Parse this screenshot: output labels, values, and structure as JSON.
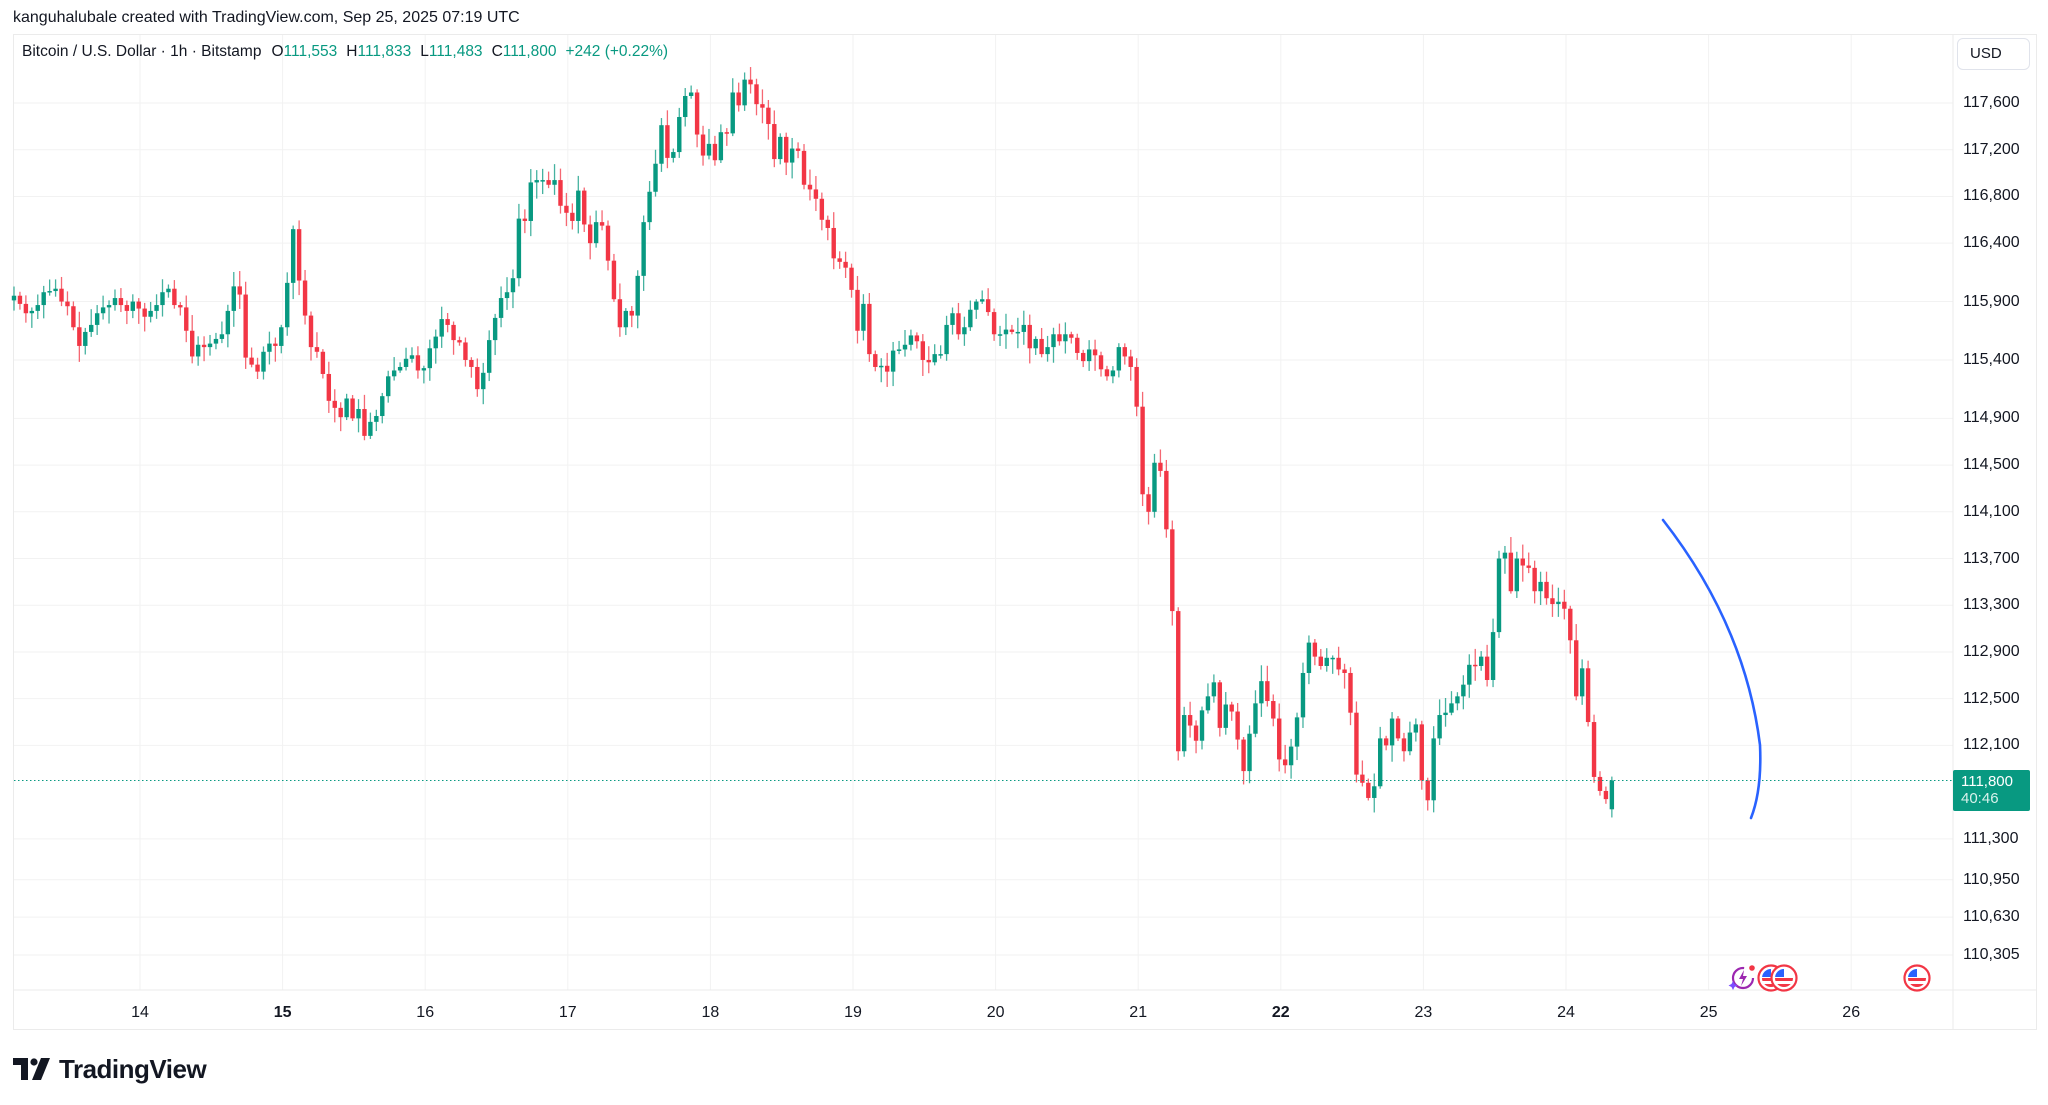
{
  "credit": "kanguhalubale created with TradingView.com, Sep 25, 2025 07:19 UTC",
  "legend": {
    "symbol": "Bitcoin / U.S. Dollar · 1h · Bitstamp",
    "open_label": "O",
    "open": "111,553",
    "high_label": "H",
    "high": "111,833",
    "low_label": "L",
    "low": "111,483",
    "close_label": "C",
    "close": "111,800",
    "change": "+242 (+0.22%)"
  },
  "currency_button": "USD",
  "price_axis": {
    "labels": [
      "117,600",
      "117,200",
      "116,800",
      "116,400",
      "115,900",
      "115,400",
      "114,900",
      "114,500",
      "114,100",
      "113,700",
      "113,300",
      "112,900",
      "112,500",
      "112,100",
      "111,300",
      "110,950",
      "110,630",
      "110,305"
    ],
    "current_price": "111,800",
    "countdown": "40:46"
  },
  "time_axis": {
    "labels": [
      {
        "text": "14",
        "bold": false
      },
      {
        "text": "15",
        "bold": true
      },
      {
        "text": "16",
        "bold": false
      },
      {
        "text": "17",
        "bold": false
      },
      {
        "text": "18",
        "bold": false
      },
      {
        "text": "19",
        "bold": false
      },
      {
        "text": "20",
        "bold": false
      },
      {
        "text": "21",
        "bold": false
      },
      {
        "text": "22",
        "bold": true
      },
      {
        "text": "23",
        "bold": false
      },
      {
        "text": "24",
        "bold": false
      },
      {
        "text": "25",
        "bold": false
      },
      {
        "text": "26",
        "bold": false
      }
    ]
  },
  "events": [
    "ai-insight-icon",
    "us-flag-event-icon",
    "us-flag-event-icon",
    "us-flag-event-icon"
  ],
  "logo_text": "TradingView",
  "colors": {
    "up": "#089981",
    "down": "#F23645",
    "drawing": "#2962FF",
    "grid": "#f2f2f2"
  },
  "chart_data": {
    "type": "candlestick",
    "title": "Bitcoin / U.S. Dollar · 1h · Bitstamp",
    "xlabel": "",
    "ylabel": "USD",
    "ylim": [
      110100,
      117950
    ],
    "grid": true,
    "x_ticks": [
      "14",
      "15",
      "16",
      "17",
      "18",
      "19",
      "20",
      "21",
      "22",
      "23",
      "24",
      "25",
      "26"
    ],
    "y_ticks": [
      117600,
      117200,
      116800,
      116400,
      115900,
      115400,
      114900,
      114500,
      114100,
      113700,
      113300,
      112900,
      112500,
      112100,
      111300,
      110950,
      110630,
      110305
    ],
    "last": {
      "open": 111553,
      "high": 111833,
      "low": 111483,
      "close": 111800,
      "change": 242,
      "change_pct": 0.22
    },
    "annotation": "blue curved arc drawn from ~113,950 on Sep 24 down to ~111,450 on Sep 25",
    "hourly_close": [
      115950,
      115880,
      115800,
      115820,
      115870,
      115980,
      115990,
      116010,
      115900,
      115860,
      115680,
      115520,
      115640,
      115700,
      115800,
      115850,
      115870,
      115930,
      115870,
      115820,
      115900,
      115840,
      115770,
      115820,
      115870,
      115980,
      116010,
      115870,
      115850,
      115650,
      115430,
      115530,
      115510,
      115540,
      115580,
      115620,
      115820,
      116030,
      115960,
      115420,
      115360,
      115300,
      115470,
      115540,
      115520,
      115680,
      116060,
      116520,
      116080,
      115780,
      115510,
      115470,
      115280,
      115050,
      114990,
      114910,
      115070,
      114900,
      114980,
      114750,
      114870,
      114920,
      115090,
      115260,
      115310,
      115340,
      115410,
      115440,
      115310,
      115330,
      115500,
      115600,
      115750,
      115700,
      115570,
      115550,
      115400,
      115340,
      115150,
      115290,
      115570,
      115760,
      115930,
      115980,
      116100,
      116610,
      116590,
      116920,
      116940,
      116940,
      116900,
      116940,
      116720,
      116660,
      116590,
      116850,
      116560,
      116400,
      116580,
      116550,
      116250,
      115920,
      115680,
      115820,
      115780,
      116120,
      116580,
      116840,
      117080,
      117410,
      117130,
      117180,
      117480,
      117660,
      117690,
      117330,
      117150,
      117250,
      117110,
      117350,
      117340,
      117690,
      117580,
      117800,
      117760,
      117590,
      117560,
      117420,
      117120,
      117310,
      117090,
      117210,
      117190,
      116900,
      116860,
      116780,
      116600,
      116530,
      116270,
      116240,
      116190,
      116000,
      115650,
      115880,
      115450,
      115340,
      115350,
      115300,
      115480,
      115490,
      115530,
      115610,
      115560,
      115400,
      115380,
      115450,
      115450,
      115700,
      115800,
      115620,
      115680,
      115830,
      115900,
      115920,
      115810,
      115620,
      115620,
      115660,
      115640,
      115640,
      115700,
      115500,
      115580,
      115450,
      115510,
      115620,
      115560,
      115620,
      115590,
      115460,
      115390,
      115490,
      115440,
      115320,
      115260,
      115310,
      115510,
      115430,
      115340,
      115000,
      114250,
      114100,
      114520,
      114450,
      113950,
      113250,
      112050,
      112360,
      112270,
      112140,
      112400,
      112520,
      112640,
      112250,
      112450,
      112390,
      112150,
      111880,
      112200,
      112460,
      112650,
      112480,
      112330,
      111980,
      111930,
      112090,
      112340,
      112720,
      112980,
      112860,
      112780,
      112850,
      112850,
      112750,
      112720,
      112380,
      111850,
      111780,
      111650,
      111750,
      112160,
      112100,
      112330,
      112160,
      112050,
      112210,
      112280,
      111800,
      111630,
      112160,
      112360,
      112380,
      112460,
      112520,
      112620,
      112790,
      112780,
      112860,
      112660,
      113070,
      113700,
      113750,
      113420,
      113700,
      113640,
      113620,
      113420,
      113500,
      113360,
      113310,
      113330,
      113270,
      113000,
      112520,
      112760,
      112300,
      111830,
      111710,
      111640,
      111800
    ]
  }
}
